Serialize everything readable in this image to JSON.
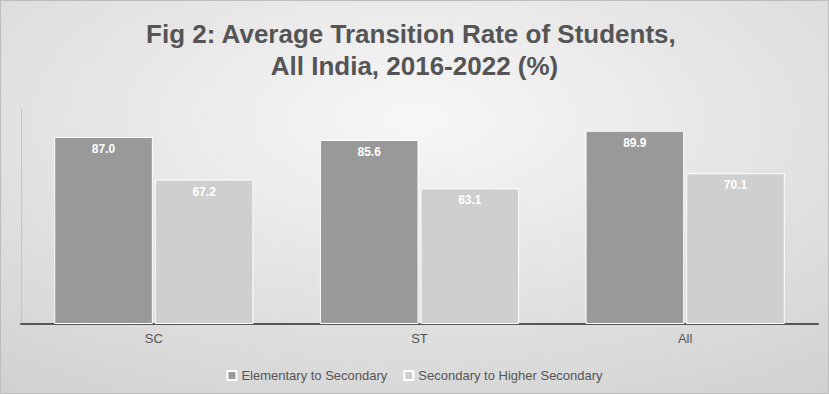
{
  "chart_data": {
    "type": "bar",
    "title": "Fig 2: Average Transition Rate of Students, All India, 2016-2022 (%)",
    "categories": [
      "SC",
      "ST",
      "All"
    ],
    "series": [
      {
        "name": "Elementary to Secondary",
        "color": "#999999",
        "values": [
          87.0,
          85.6,
          89.9
        ],
        "value_labels": [
          "87.0",
          "85.6",
          "89.9"
        ]
      },
      {
        "name": "Secondary to Higher Secondary",
        "color": "#cfcfcf",
        "values": [
          67.2,
          63.1,
          70.1
        ],
        "value_labels": [
          "67.2",
          "63.1",
          "70.1"
        ]
      }
    ],
    "ylim": [
      0,
      100
    ],
    "grid": false,
    "legend": "bottom",
    "data_labels": true,
    "tick_labels": "x"
  }
}
